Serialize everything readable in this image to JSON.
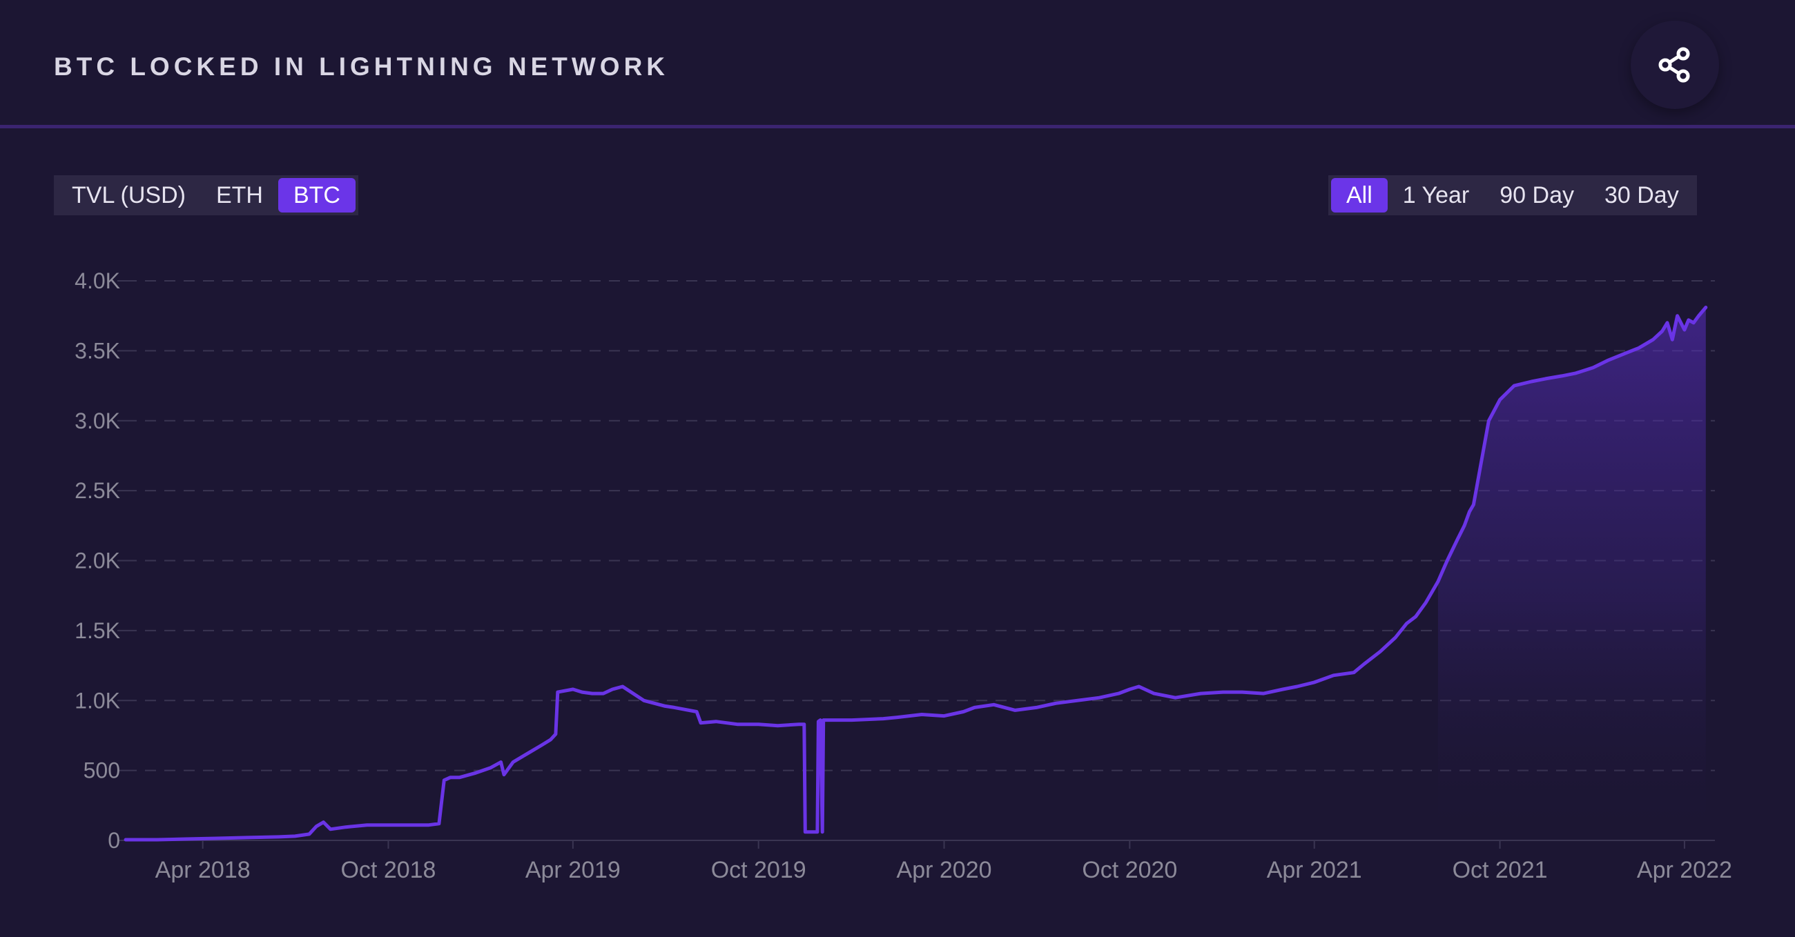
{
  "header": {
    "title": "BTC LOCKED IN LIGHTNING NETWORK",
    "share_icon": "share-icon"
  },
  "metric_tabs": [
    {
      "label": "TVL (USD)",
      "active": false
    },
    {
      "label": "ETH",
      "active": false
    },
    {
      "label": "BTC",
      "active": true
    }
  ],
  "range_tabs": [
    {
      "label": "All",
      "active": true
    },
    {
      "label": "1 Year",
      "active": false
    },
    {
      "label": "90 Day",
      "active": false
    },
    {
      "label": "30 Day",
      "active": false
    }
  ],
  "colors": {
    "background": "#1c1633",
    "line": "#6a34e6",
    "accent": "#6b35e8",
    "grid": "#3a3552",
    "tick_text": "#8c8a99"
  },
  "chart_data": {
    "type": "area",
    "title": "",
    "xlabel": "",
    "ylabel": "",
    "ylim": [
      0,
      4000
    ],
    "xlim": [
      "2018-01-15",
      "2022-05-01"
    ],
    "y_ticks": [
      {
        "value": 0,
        "label": "0"
      },
      {
        "value": 500,
        "label": "500"
      },
      {
        "value": 1000,
        "label": "1.0K"
      },
      {
        "value": 1500,
        "label": "1.5K"
      },
      {
        "value": 2000,
        "label": "2.0K"
      },
      {
        "value": 2500,
        "label": "2.5K"
      },
      {
        "value": 3000,
        "label": "3.0K"
      },
      {
        "value": 3500,
        "label": "3.5K"
      },
      {
        "value": 4000,
        "label": "4.0K"
      }
    ],
    "x_ticks": [
      {
        "value": "2018-04-01",
        "label": "Apr 2018"
      },
      {
        "value": "2018-10-01",
        "label": "Oct 2018"
      },
      {
        "value": "2019-04-01",
        "label": "Apr 2019"
      },
      {
        "value": "2019-10-01",
        "label": "Oct 2019"
      },
      {
        "value": "2020-04-01",
        "label": "Apr 2020"
      },
      {
        "value": "2020-10-01",
        "label": "Oct 2020"
      },
      {
        "value": "2021-04-01",
        "label": "Apr 2021"
      },
      {
        "value": "2021-10-01",
        "label": "Oct 2021"
      },
      {
        "value": "2022-04-01",
        "label": "Apr 2022"
      }
    ],
    "grid": true,
    "legend": "none",
    "fill_from": "2021-08-01",
    "series": [
      {
        "x": [
          "2018-01-15",
          "2018-02-15",
          "2018-03-15",
          "2018-04-15",
          "2018-05-15",
          "2018-06-15",
          "2018-07-01",
          "2018-07-15",
          "2018-07-22",
          "2018-07-29",
          "2018-08-05",
          "2018-08-20",
          "2018-09-10",
          "2018-09-25",
          "2018-10-10",
          "2018-10-25",
          "2018-11-10",
          "2018-11-20",
          "2018-11-25",
          "2018-12-01",
          "2018-12-10",
          "2018-12-25",
          "2019-01-10",
          "2019-01-20",
          "2019-01-23",
          "2019-02-01",
          "2019-02-15",
          "2019-03-01",
          "2019-03-10",
          "2019-03-15",
          "2019-03-17",
          "2019-04-01",
          "2019-04-10",
          "2019-04-20",
          "2019-05-01",
          "2019-05-10",
          "2019-05-20",
          "2019-06-10",
          "2019-07-01",
          "2019-07-10",
          "2019-08-01",
          "2019-08-05",
          "2019-08-20",
          "2019-09-10",
          "2019-10-01",
          "2019-10-20",
          "2019-11-10",
          "2019-11-15",
          "2019-11-16",
          "2019-11-28",
          "2019-11-29",
          "2019-12-01",
          "2019-12-03",
          "2019-12-04",
          "2019-12-10",
          "2020-01-01",
          "2020-02-01",
          "2020-02-15",
          "2020-03-10",
          "2020-04-01",
          "2020-04-20",
          "2020-05-01",
          "2020-05-20",
          "2020-06-10",
          "2020-07-01",
          "2020-07-20",
          "2020-08-10",
          "2020-09-01",
          "2020-09-20",
          "2020-10-01",
          "2020-10-10",
          "2020-10-25",
          "2020-11-15",
          "2020-12-10",
          "2021-01-01",
          "2021-01-20",
          "2021-02-10",
          "2021-03-01",
          "2021-03-15",
          "2021-04-01",
          "2021-04-20",
          "2021-05-10",
          "2021-05-20",
          "2021-06-05",
          "2021-06-20",
          "2021-07-01",
          "2021-07-10",
          "2021-07-20",
          "2021-08-01",
          "2021-08-10",
          "2021-08-20",
          "2021-08-27",
          "2021-09-01",
          "2021-09-05",
          "2021-09-10",
          "2021-09-20",
          "2021-10-01",
          "2021-10-15",
          "2021-11-01",
          "2021-11-15",
          "2021-12-01",
          "2021-12-15",
          "2022-01-01",
          "2022-01-15",
          "2022-02-01",
          "2022-02-15",
          "2022-03-01",
          "2022-03-10",
          "2022-03-15",
          "2022-03-20",
          "2022-03-25",
          "2022-04-01",
          "2022-04-05",
          "2022-04-10",
          "2022-04-15",
          "2022-04-22"
        ],
        "y": [
          5,
          5,
          10,
          15,
          20,
          25,
          30,
          45,
          100,
          130,
          80,
          95,
          110,
          110,
          110,
          110,
          110,
          120,
          430,
          450,
          450,
          480,
          520,
          560,
          470,
          560,
          620,
          680,
          720,
          760,
          1060,
          1080,
          1060,
          1050,
          1050,
          1080,
          1100,
          1000,
          960,
          950,
          920,
          840,
          850,
          830,
          830,
          820,
          830,
          830,
          60,
          60,
          850,
          860,
          60,
          860,
          860,
          860,
          870,
          880,
          900,
          890,
          920,
          950,
          970,
          930,
          950,
          980,
          1000,
          1020,
          1050,
          1080,
          1100,
          1050,
          1020,
          1050,
          1060,
          1060,
          1050,
          1080,
          1100,
          1130,
          1180,
          1200,
          1260,
          1350,
          1450,
          1550,
          1600,
          1700,
          1850,
          2000,
          2150,
          2250,
          2350,
          2400,
          2600,
          3000,
          3150,
          3250,
          3280,
          3300,
          3320,
          3340,
          3380,
          3430,
          3480,
          3520,
          3580,
          3640,
          3700,
          3580,
          3750,
          3650,
          3720,
          3700,
          3750,
          3810
        ]
      }
    ]
  }
}
